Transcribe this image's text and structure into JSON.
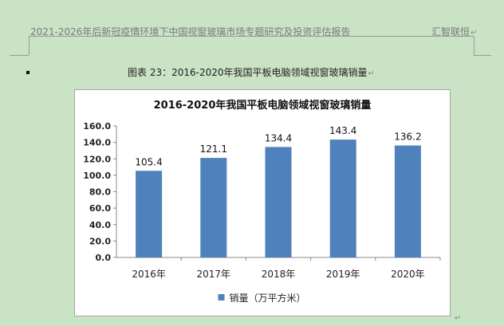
{
  "header": {
    "left_text": "2021-2026年后新冠疫情环境下中国视窗玻璃市场专题研究及投资评估报告",
    "right_text": "汇智联恒",
    "return_mark": "↵"
  },
  "caption": {
    "text": "图表 23：2016-2020年我国平板电脑领域视窗玻璃销量",
    "return_mark": "↵"
  },
  "end_mark": "↵",
  "chart_data": {
    "type": "bar",
    "title": "2016-2020年我国平板电脑领域视窗玻璃销量",
    "categories": [
      "2016年",
      "2017年",
      "2018年",
      "2019年",
      "2020年"
    ],
    "series": [
      {
        "name": "销量（万平方米）",
        "values": [
          105.4,
          121.1,
          134.4,
          143.4,
          136.2
        ],
        "color": "#4f81bd"
      }
    ],
    "data_labels": [
      "105.4",
      "121.1",
      "134.4",
      "143.4",
      "136.2"
    ],
    "ylim": [
      0,
      160
    ],
    "yticks": [
      "0.0",
      "20.0",
      "40.0",
      "60.0",
      "80.0",
      "100.0",
      "120.0",
      "140.0",
      "160.0"
    ],
    "xlabel": "",
    "ylabel": "",
    "grid": false,
    "legend_position": "bottom"
  }
}
